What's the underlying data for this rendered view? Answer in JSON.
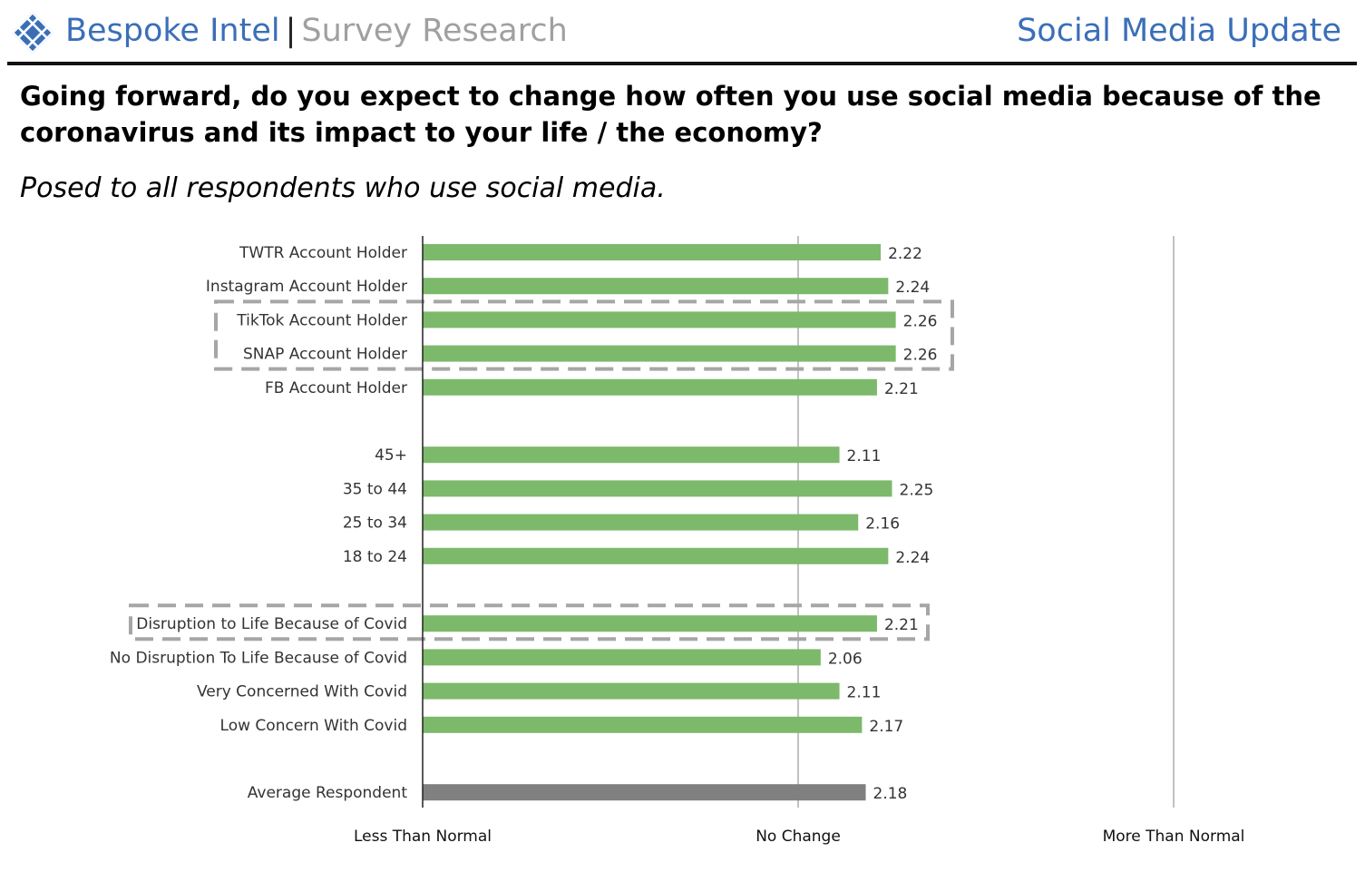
{
  "header": {
    "brand_main": "Bespoke Intel",
    "brand_sep": "|",
    "brand_sub": "Survey Research",
    "report_title": "Social Media Update",
    "logo_icon": "crosshatch-diamond-logo"
  },
  "question": "Going forward, do you expect to change how often you use social media because of the coronavirus and its impact to your life / the economy?",
  "subtitle": "Posed to all respondents who use social media.",
  "colors": {
    "brand_blue": "#3a6fb8",
    "bar_green": "#7cb96a",
    "bar_average": "#808080",
    "highlight_box": "#a6a6a6",
    "gridline": "#a0a0a0",
    "axis": "#222222"
  },
  "chart_data": {
    "type": "bar",
    "orientation": "horizontal",
    "title": "",
    "xlim": [
      1,
      3
    ],
    "grid": true,
    "categories": [
      "TWTR Account Holder",
      "Instagram Account Holder",
      "TikTok Account Holder",
      "SNAP Account Holder",
      "FB Account Holder",
      "",
      "45+",
      "35 to 44",
      "25 to 34",
      "18 to 24",
      "",
      "Disruption to Life Because of Covid",
      "No Disruption To Life Because of Covid",
      "Very Concerned With Covid",
      "Low Concern With Covid",
      "",
      "Average Respondent"
    ],
    "values": [
      2.22,
      2.24,
      2.26,
      2.26,
      2.21,
      null,
      2.11,
      2.25,
      2.16,
      2.24,
      null,
      2.21,
      2.06,
      2.11,
      2.17,
      null,
      2.18
    ],
    "value_labels": [
      "2.22",
      "2.24",
      "2.26",
      "2.26",
      "2.21",
      "",
      "2.11",
      "2.25",
      "2.16",
      "2.24",
      "",
      "2.21",
      "2.06",
      "2.11",
      "2.17",
      "",
      "2.18"
    ],
    "highlighted_average_category": "Average Respondent",
    "highlight_groups": [
      [
        "TikTok Account Holder",
        "SNAP Account Holder"
      ],
      [
        "Disruption to Life Because of Covid"
      ]
    ],
    "x_ticks": [
      {
        "value": 1,
        "label": "Less Than Normal"
      },
      {
        "value": 2,
        "label": "No Change"
      },
      {
        "value": 3,
        "label": "More Than Normal"
      }
    ]
  }
}
